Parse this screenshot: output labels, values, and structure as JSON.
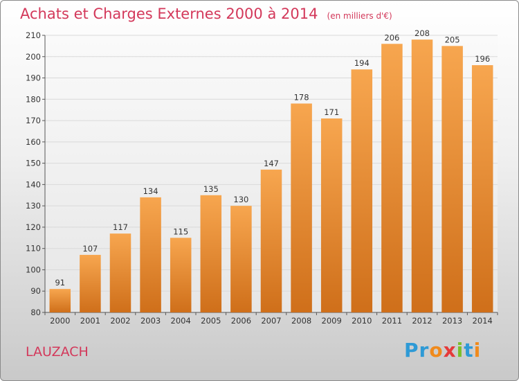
{
  "header": {
    "title": "Achats et Charges Externes 2000 à 2014",
    "unit": "(en milliers d'€)"
  },
  "footer": {
    "commune": "LAUZACH",
    "logo_letters": [
      "P",
      "r",
      "o",
      "x",
      "i",
      "t",
      "i"
    ],
    "logo_colors": [
      "#2e9ad6",
      "#2e9ad6",
      "#f08a1c",
      "#e53a3a",
      "#7bbf2a",
      "#2e9ad6",
      "#f08a1c"
    ]
  },
  "colors": {
    "title": "#d3385a",
    "bar_top": "#f7a64f",
    "bar_bottom": "#cf6f1a",
    "grid": "#d9d9d9"
  },
  "chart_data": {
    "type": "bar",
    "categories": [
      "2000",
      "2001",
      "2002",
      "2003",
      "2004",
      "2005",
      "2006",
      "2007",
      "2008",
      "2009",
      "2010",
      "2011",
      "2012",
      "2013",
      "2014"
    ],
    "values": [
      91,
      107,
      117,
      134,
      115,
      135,
      130,
      147,
      178,
      171,
      194,
      206,
      208,
      205,
      196
    ],
    "title": "Achats et Charges Externes 2000 à 2014",
    "ylim": [
      80,
      210
    ],
    "yticks": [
      80,
      90,
      100,
      110,
      120,
      130,
      140,
      150,
      160,
      170,
      180,
      190,
      200,
      210
    ],
    "grid": true
  }
}
